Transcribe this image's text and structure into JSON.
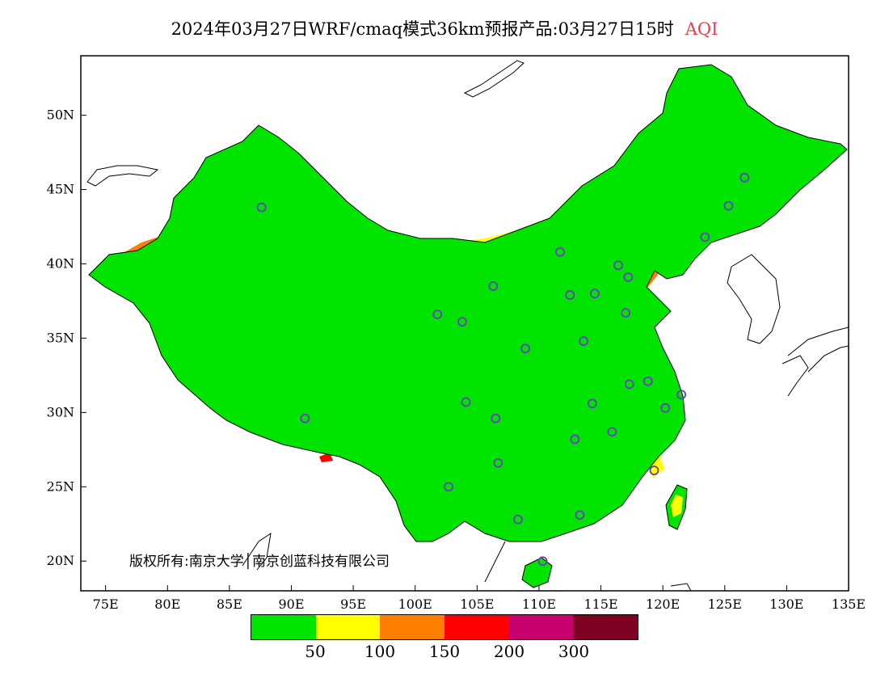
{
  "title": {
    "main": "2024年03月27日WRF/cmaq模式36km预报产品:03月27日15时",
    "variable": "AQI",
    "variable_color": "#e4414a"
  },
  "axes": {
    "x_ticks": [
      "75E",
      "80E",
      "85E",
      "90E",
      "95E",
      "100E",
      "105E",
      "110E",
      "115E",
      "120E",
      "125E",
      "130E",
      "135E"
    ],
    "y_ticks": [
      "50N",
      "45N",
      "40N",
      "35N",
      "30N",
      "25N",
      "20N"
    ],
    "lon_range": [
      73,
      135
    ],
    "lat_range": [
      18,
      54
    ]
  },
  "legend": {
    "colors": [
      "#00e400",
      "#ffff00",
      "#ff7e00",
      "#ff0000",
      "#c8006e",
      "#7e0023"
    ],
    "ticks": [
      "50",
      "100",
      "150",
      "200",
      "300"
    ]
  },
  "copyright": "版权所有:南京大学│南京创蓝科技有限公司",
  "map_colors": {
    "good": "#00e400",
    "moderate": "#ffff00",
    "usg": "#ff7e00",
    "unhealthy": "#ff0000",
    "very_unhealthy": "#c8006e",
    "hazardous": "#7e0023",
    "lightgreen": "#59cf2b",
    "city_marker": "#6a3cc8"
  },
  "city_markers": [
    [
      87.6,
      43.8
    ],
    [
      91.1,
      29.6
    ],
    [
      101.8,
      36.6
    ],
    [
      103.8,
      36.1
    ],
    [
      106.3,
      38.5
    ],
    [
      111.7,
      40.8
    ],
    [
      116.4,
      39.9
    ],
    [
      117.2,
      39.1
    ],
    [
      114.5,
      38.0
    ],
    [
      112.5,
      37.9
    ],
    [
      113.6,
      34.8
    ],
    [
      117.0,
      36.7
    ],
    [
      108.9,
      34.3
    ],
    [
      104.1,
      30.7
    ],
    [
      106.5,
      29.6
    ],
    [
      114.3,
      30.6
    ],
    [
      117.3,
      31.9
    ],
    [
      118.8,
      32.1
    ],
    [
      121.5,
      31.2
    ],
    [
      120.2,
      30.3
    ],
    [
      112.9,
      28.2
    ],
    [
      115.9,
      28.7
    ],
    [
      119.3,
      26.1
    ],
    [
      113.3,
      23.1
    ],
    [
      108.3,
      22.8
    ],
    [
      106.7,
      26.6
    ],
    [
      102.7,
      25.0
    ],
    [
      110.3,
      20.0
    ],
    [
      123.4,
      41.8
    ],
    [
      125.3,
      43.9
    ],
    [
      126.6,
      45.8
    ]
  ]
}
